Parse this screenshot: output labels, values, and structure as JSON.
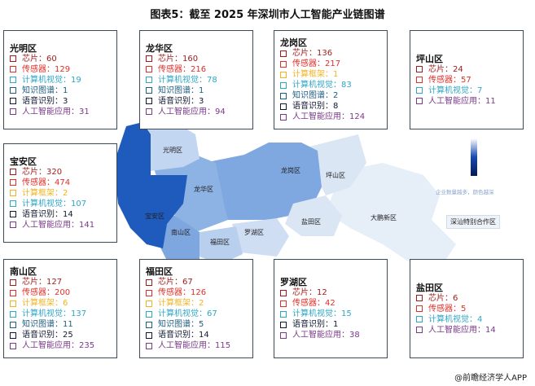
{
  "title": "图表5：截至 2025 年深圳市人工智能产业链图谱",
  "colors": {
    "芯片": "#9c1c1c",
    "传感器": "#e0302a",
    "计算框架": "#eeb422",
    "计算机视觉": "#2fa6c6",
    "知识图谱": "#1f5d80",
    "语音识别": "#101830",
    "人工智能应用": "#7a3a8a"
  },
  "districts": [
    {
      "name": "光明区",
      "items": [
        [
          "芯片",
          "60"
        ],
        [
          "传感器",
          "129"
        ],
        [
          "计算机视觉",
          "19"
        ],
        [
          "知识图谱",
          "1"
        ],
        [
          "语音识别",
          "3"
        ],
        [
          "人工智能应用",
          "31"
        ]
      ]
    },
    {
      "name": "龙华区",
      "items": [
        [
          "芯片",
          "160"
        ],
        [
          "传感器",
          "216"
        ],
        [
          "计算机视觉",
          "78"
        ],
        [
          "知识图谱",
          "1"
        ],
        [
          "语音识别",
          "3"
        ],
        [
          "人工智能应用",
          "94"
        ]
      ]
    },
    {
      "name": "龙岗区",
      "items": [
        [
          "芯片",
          "136"
        ],
        [
          "传感器",
          "217"
        ],
        [
          "计算框架",
          "1"
        ],
        [
          "计算机视觉",
          "83"
        ],
        [
          "知识图谱",
          "2"
        ],
        [
          "语音识别",
          "8"
        ],
        [
          "人工智能应用",
          "124"
        ]
      ]
    },
    {
      "name": "坪山区",
      "items": [
        [
          "芯片",
          "24"
        ],
        [
          "传感器",
          "57"
        ],
        [
          "计算机视觉",
          "7"
        ],
        [
          "人工智能应用",
          "11"
        ]
      ]
    },
    {
      "name": "宝安区",
      "items": [
        [
          "芯片",
          "320"
        ],
        [
          "传感器",
          "474"
        ],
        [
          "计算框架",
          "2"
        ],
        [
          "计算机视觉",
          "107"
        ],
        [
          "语音识别",
          "14"
        ],
        [
          "人工智能应用",
          "141"
        ]
      ]
    },
    {
      "name": "南山区",
      "items": [
        [
          "芯片",
          "127"
        ],
        [
          "传感器",
          "200"
        ],
        [
          "计算框架",
          "6"
        ],
        [
          "计算机视觉",
          "137"
        ],
        [
          "知识图谱",
          "11"
        ],
        [
          "语音识别",
          "25"
        ],
        [
          "人工智能应用",
          "235"
        ]
      ]
    },
    {
      "name": "福田区",
      "items": [
        [
          "芯片",
          "67"
        ],
        [
          "传感器",
          "126"
        ],
        [
          "计算框架",
          "2"
        ],
        [
          "计算机视觉",
          "67"
        ],
        [
          "知识图谱",
          "5"
        ],
        [
          "语音识别",
          "14"
        ],
        [
          "人工智能应用",
          "115"
        ]
      ]
    },
    {
      "name": "罗湖区",
      "items": [
        [
          "芯片",
          "12"
        ],
        [
          "传感器",
          "42"
        ],
        [
          "计算机视觉",
          "15"
        ],
        [
          "语音识别",
          "1"
        ],
        [
          "人工智能应用",
          "38"
        ]
      ]
    },
    {
      "name": "盐田区",
      "items": [
        [
          "芯片",
          "6"
        ],
        [
          "传感器",
          "5"
        ],
        [
          "计算机视觉",
          "4"
        ],
        [
          "人工智能应用",
          "14"
        ]
      ]
    }
  ],
  "map_labels": [
    "光明区",
    "龙华区",
    "宝安区",
    "南山区",
    "福田区",
    "罗湖区",
    "龙岗区",
    "坪山区",
    "盐田区",
    "大鹏新区"
  ],
  "special_zone": "深汕特别合作区",
  "legend_text": "企业数量越多，颜色越深",
  "source": "@前瞻经济学人APP"
}
